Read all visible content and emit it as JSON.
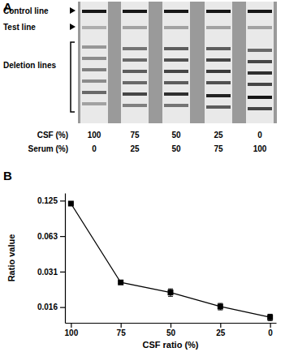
{
  "chart_data": {
    "type": "line",
    "x_label": "CSF ratio (%)",
    "y_label": "Ratio value",
    "categories": [
      "100",
      "75",
      "50",
      "25",
      "0"
    ],
    "values": [
      0.118,
      0.0253,
      0.0208,
      0.0158,
      0.0128
    ],
    "errors": [
      0.002,
      0.0005,
      0.0015,
      0.001,
      0.0008
    ],
    "color": "#000000",
    "marker": "square",
    "line_style": "solid",
    "log": "y",
    "ylim": [
      0.0115,
      0.145
    ],
    "yticks": [
      {
        "value": 0.015625,
        "label": "0.016"
      },
      {
        "value": 0.03125,
        "label": "0.031"
      },
      {
        "value": 0.0625,
        "label": "0.063"
      },
      0.125
    ]
  },
  "panel_labels": [
    "A",
    "B"
  ],
  "panel_a": {
    "annotations": [
      "Control line",
      "Test line",
      "Deletion lines"
    ],
    "rows": [
      {
        "label": "CSF (%)",
        "values": [
          100,
          75,
          50,
          25,
          0
        ]
      },
      {
        "label": "Serum (%)",
        "values": [
          0,
          25,
          50,
          75,
          100
        ]
      }
    ]
  }
}
